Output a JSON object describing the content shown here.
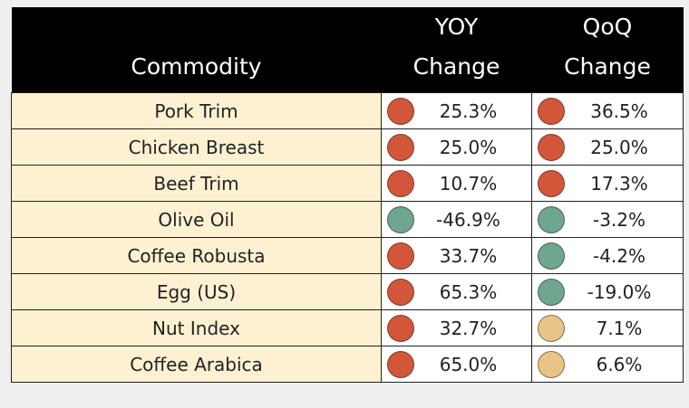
{
  "colors": {
    "up": "#d2563a",
    "down": "#6fa68f",
    "neutral": "#e9c487",
    "header_bg": "#000000",
    "name_bg": "#fdf1d2"
  },
  "chart_data": {
    "type": "table",
    "columns": [
      "Commodity",
      "YOY Change",
      "QoQ Change"
    ],
    "header": {
      "commodity": "Commodity",
      "yoy_top": "YOY",
      "yoy_bottom": "Change",
      "qoq_top": "QoQ",
      "qoq_bottom": "Change"
    },
    "rows": [
      {
        "name": "Pork Trim",
        "yoy": "25.3%",
        "yoy_status": "up",
        "qoq": "36.5%",
        "qoq_status": "up"
      },
      {
        "name": "Chicken Breast",
        "yoy": "25.0%",
        "yoy_status": "up",
        "qoq": "25.0%",
        "qoq_status": "up"
      },
      {
        "name": "Beef Trim",
        "yoy": "10.7%",
        "yoy_status": "up",
        "qoq": "17.3%",
        "qoq_status": "up"
      },
      {
        "name": "Olive Oil",
        "yoy": "-46.9%",
        "yoy_status": "down",
        "qoq": "-3.2%",
        "qoq_status": "down"
      },
      {
        "name": "Coffee Robusta",
        "yoy": "33.7%",
        "yoy_status": "up",
        "qoq": "-4.2%",
        "qoq_status": "down"
      },
      {
        "name": "Egg (US)",
        "yoy": "65.3%",
        "yoy_status": "up",
        "qoq": "-19.0%",
        "qoq_status": "down"
      },
      {
        "name": "Nut Index",
        "yoy": "32.7%",
        "yoy_status": "up",
        "qoq": "7.1%",
        "qoq_status": "neutral"
      },
      {
        "name": "Coffee Arabica",
        "yoy": "65.0%",
        "yoy_status": "up",
        "qoq": "6.6%",
        "qoq_status": "neutral"
      }
    ]
  }
}
